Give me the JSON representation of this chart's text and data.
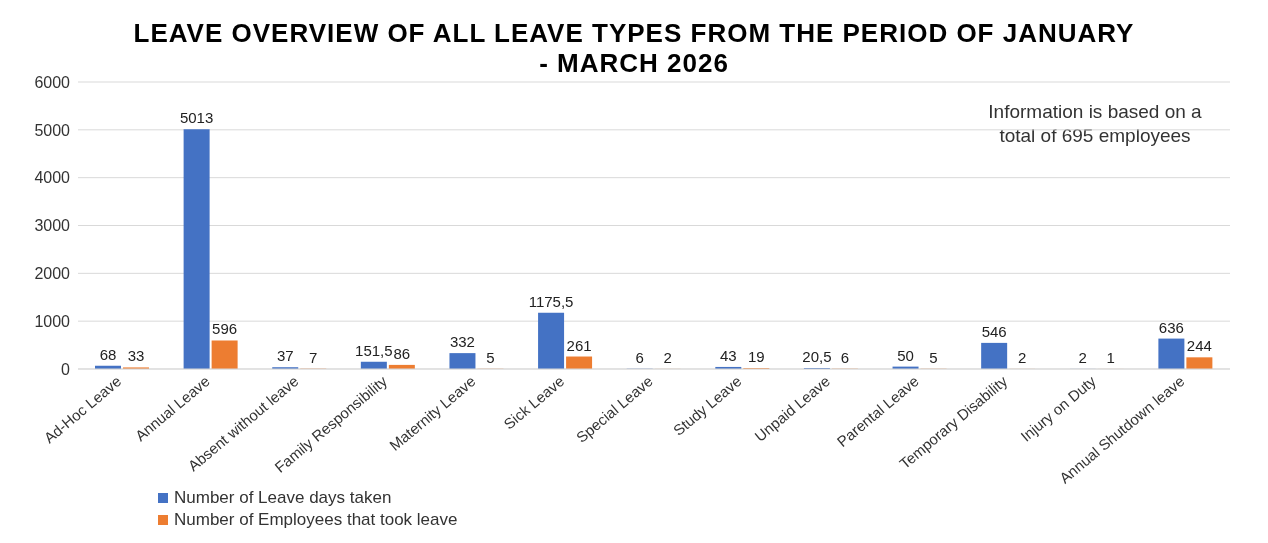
{
  "chart_data": {
    "type": "bar",
    "title": "LEAVE OVERVIEW OF ALL LEAVE TYPES FROM THE PERIOD OF JANUARY - MARCH 2026",
    "categories": [
      "Ad-Hoc Leave",
      "Annual Leave",
      "Absent without leave",
      "Family Responsibility",
      "Maternity Leave",
      "Sick Leave",
      "Special Leave",
      "Study Leave",
      "Unpaid Leave",
      "Parental Leave",
      "Temporary Disability",
      "Injury on Duty",
      "Annual Shutdown leave"
    ],
    "series": [
      {
        "name": "Number of Leave days taken",
        "color": "#4472c4",
        "values": [
          68,
          5013,
          37,
          151.5,
          332,
          1175.5,
          6,
          43,
          20.5,
          50,
          546,
          2,
          636
        ],
        "value_labels": [
          "68",
          "5013",
          "37",
          "151,5",
          "332",
          "1175,5",
          "6",
          "43",
          "20,5",
          "50",
          "546",
          "2",
          "636"
        ]
      },
      {
        "name": "Number of Employees that took leave",
        "color": "#ed7d31",
        "values": [
          33,
          596,
          7,
          86,
          5,
          261,
          2,
          19,
          6,
          5,
          2,
          1,
          244
        ],
        "value_labels": [
          "33",
          "596",
          "7",
          "86",
          "5",
          "261",
          "2",
          "19",
          "6",
          "5",
          "2",
          "1",
          "244"
        ]
      }
    ],
    "ylim": [
      0,
      6000
    ],
    "yticks": [
      0,
      1000,
      2000,
      3000,
      4000,
      5000,
      6000
    ],
    "grid": "y",
    "legend": "bottom left",
    "annotations": [
      "Information is based on a total of 695 employees"
    ]
  }
}
